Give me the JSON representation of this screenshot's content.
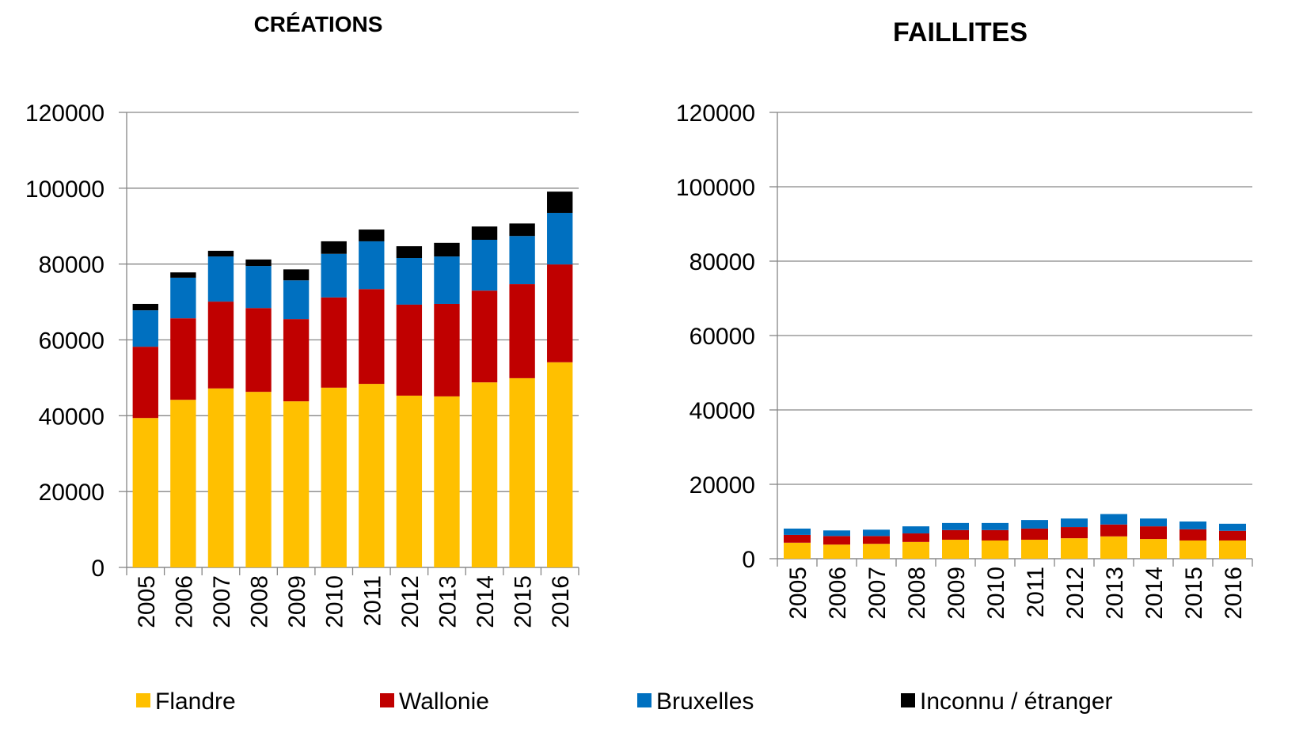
{
  "chart_data": [
    {
      "type": "bar",
      "stacked": true,
      "title": "CRÉATIONS",
      "categories": [
        "2005",
        "2006",
        "2007",
        "2008",
        "2009",
        "2010",
        "2011",
        "2012",
        "2013",
        "2014",
        "2015",
        "2016"
      ],
      "series": [
        {
          "name": "Flandre",
          "color": "#ffc000",
          "values": [
            39400,
            44200,
            47200,
            46300,
            43800,
            47400,
            48400,
            45300,
            45100,
            48800,
            49900,
            54100
          ]
        },
        {
          "name": "Wallonie",
          "color": "#c00000",
          "values": [
            18800,
            21500,
            22900,
            22100,
            21700,
            23800,
            25000,
            24000,
            24400,
            24200,
            24800,
            25800
          ]
        },
        {
          "name": "Bruxelles",
          "color": "#0070c0",
          "values": [
            9600,
            10700,
            11900,
            11100,
            10200,
            11500,
            12600,
            12300,
            12500,
            13400,
            12700,
            13600
          ]
        },
        {
          "name": "Inconnu / étranger",
          "color": "#000000",
          "values": [
            1700,
            1400,
            1500,
            1700,
            2900,
            3300,
            3100,
            3100,
            3600,
            3500,
            3300,
            5600
          ]
        }
      ],
      "ylim": [
        0,
        120000
      ],
      "yticks": [
        0,
        20000,
        40000,
        60000,
        80000,
        100000,
        120000
      ],
      "grid": true
    },
    {
      "type": "bar",
      "stacked": true,
      "title": "FAILLITES",
      "categories": [
        "2005",
        "2006",
        "2007",
        "2008",
        "2009",
        "2010",
        "2011",
        "2012",
        "2013",
        "2014",
        "2015",
        "2016"
      ],
      "series": [
        {
          "name": "Flandre",
          "color": "#ffc000",
          "values": [
            4300,
            3800,
            4000,
            4500,
            5100,
            4900,
            5100,
            5500,
            6000,
            5300,
            4900,
            4900
          ]
        },
        {
          "name": "Wallonie",
          "color": "#c00000",
          "values": [
            2100,
            2300,
            2100,
            2300,
            2600,
            2800,
            3000,
            3000,
            3200,
            3400,
            3000,
            2600
          ]
        },
        {
          "name": "Bruxelles",
          "color": "#0070c0",
          "values": [
            1700,
            1500,
            1700,
            1900,
            1900,
            1900,
            2300,
            2300,
            2800,
            2100,
            2100,
            1900
          ]
        },
        {
          "name": "Inconnu / étranger",
          "color": "#000000",
          "values": [
            0,
            0,
            0,
            0,
            0,
            0,
            0,
            0,
            0,
            0,
            0,
            0
          ]
        }
      ],
      "ylim": [
        0,
        120000
      ],
      "yticks": [
        0,
        20000,
        40000,
        60000,
        80000,
        100000,
        120000
      ],
      "grid": true
    }
  ]
}
